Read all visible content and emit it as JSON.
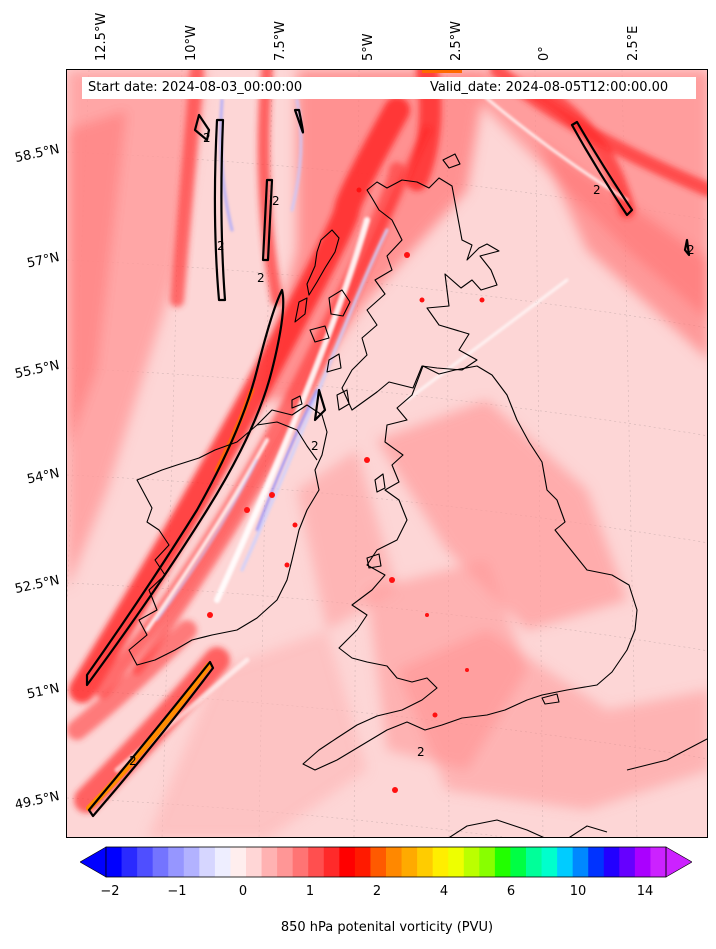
{
  "header": {
    "start_date": "Start date: 2024-08-03_00:00:00",
    "valid_date": "Valid_date: 2024-08-05T12:00:00.00"
  },
  "map": {
    "lon_labels": [
      "12.5°W",
      "10°W",
      "7.5°W",
      "5°W",
      "2.5°W",
      "0°",
      "2.5°E"
    ],
    "lat_labels": [
      "58.5°N",
      "57°N",
      "55.5°N",
      "54°N",
      "52.5°N",
      "51°N",
      "49.5°N"
    ],
    "contour_labels": [
      "2",
      "2",
      "2",
      "2",
      "2",
      "2",
      "2",
      "2",
      "2"
    ],
    "background_color": "#fdd6d6",
    "coastline_color": "#000000"
  },
  "colorbar": {
    "title": "850 hPa potenital vorticity (PVU)",
    "tick_labels": [
      "−2",
      "−1",
      "0",
      "1",
      "2",
      "4",
      "6",
      "10",
      "14"
    ],
    "colors": [
      "#0000ff",
      "#2a2aff",
      "#4f4fff",
      "#7474ff",
      "#9696ff",
      "#b2b2ff",
      "#d6d6ff",
      "#eeeeff",
      "#ffeeee",
      "#ffd6d6",
      "#ffb2b2",
      "#ff9696",
      "#ff7474",
      "#ff4f4f",
      "#ff2a2a",
      "#ff0000",
      "#ff1a00",
      "#ff5a00",
      "#ff8800",
      "#ffaa00",
      "#ffcc00",
      "#ffee00",
      "#eeff00",
      "#bbff00",
      "#88ff00",
      "#22ff00",
      "#00ff44",
      "#00ff99",
      "#00ffcc",
      "#00ccff",
      "#0088ff",
      "#0033ff",
      "#2200ff",
      "#6600ff",
      "#aa00ff",
      "#cc22ff"
    ]
  }
}
